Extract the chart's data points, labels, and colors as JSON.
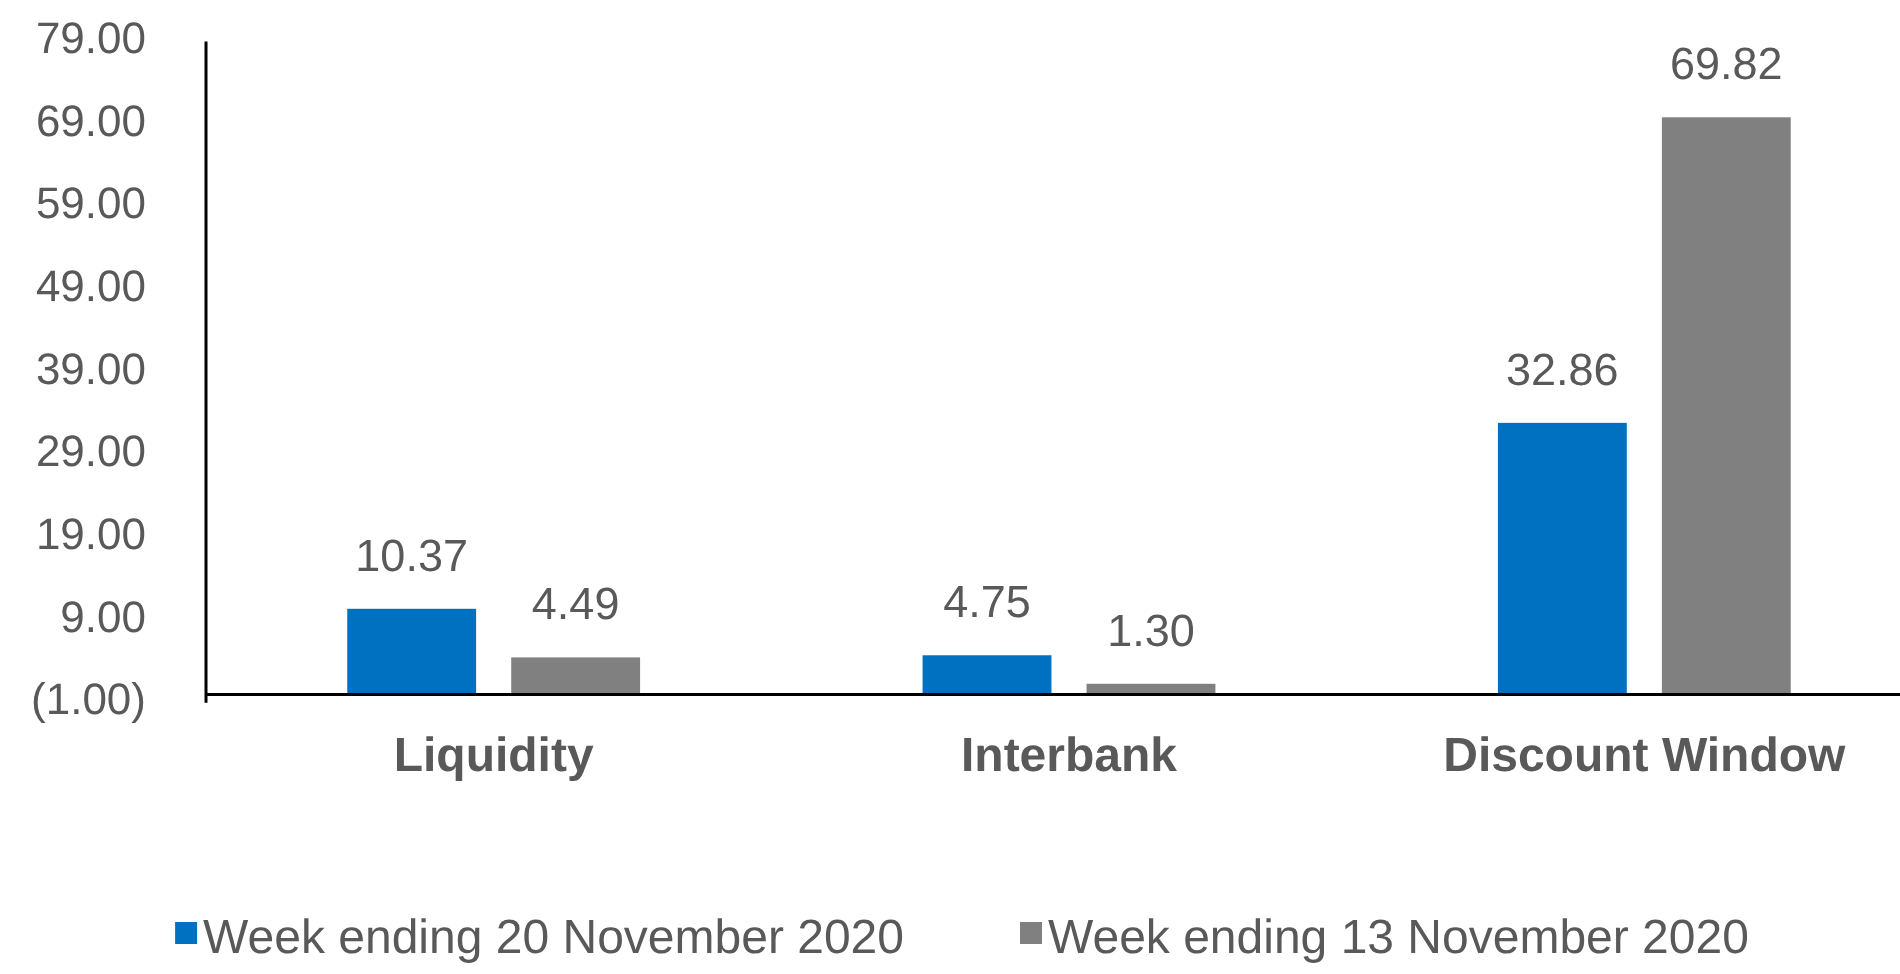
{
  "chart_data": {
    "type": "bar",
    "categories": [
      "Liquidity",
      "Interbank",
      "Discount Window"
    ],
    "series": [
      {
        "name": "Week ending 20 November 2020",
        "color": "#0070c0",
        "values": [
          10.37,
          4.75,
          32.86
        ],
        "value_labels": [
          "10.37",
          "4.75",
          "32.86"
        ]
      },
      {
        "name": "Week ending 13 November 2020",
        "color": "#808080",
        "values": [
          4.49,
          1.3,
          69.82
        ],
        "value_labels": [
          "4.49",
          "1.30",
          "69.82"
        ]
      }
    ],
    "ylim": [
      -1,
      79
    ],
    "yticks": [
      {
        "value": -1,
        "label": "(1.00)"
      },
      {
        "value": 9,
        "label": "9.00"
      },
      {
        "value": 19,
        "label": "19.00"
      },
      {
        "value": 29,
        "label": "29.00"
      },
      {
        "value": 39,
        "label": "39.00"
      },
      {
        "value": 49,
        "label": "49.00"
      },
      {
        "value": 59,
        "label": "59.00"
      },
      {
        "value": 69,
        "label": "69.00"
      },
      {
        "value": 79,
        "label": "79.00"
      }
    ],
    "legend": "bottom"
  }
}
